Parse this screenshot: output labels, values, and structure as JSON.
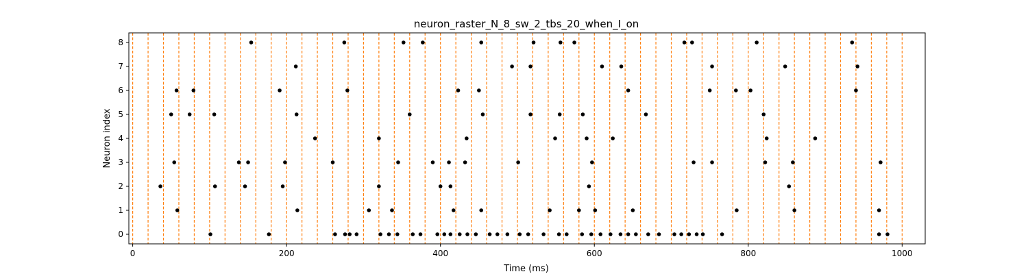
{
  "chart_data": {
    "type": "scatter",
    "title": "neuron_raster_N_8_sw_2_tbs_20_when_I_on",
    "xlabel": "Time (ms)",
    "ylabel": "Neuron index",
    "xlim": [
      -5,
      1030
    ],
    "ylim": [
      -0.4,
      8.4
    ],
    "xticks": [
      0,
      200,
      400,
      600,
      800,
      1000
    ],
    "yticks": [
      0,
      1,
      2,
      3,
      4,
      5,
      6,
      7,
      8
    ],
    "stimulus_times": [
      0,
      20,
      40,
      60,
      80,
      100,
      120,
      140,
      160,
      180,
      200,
      220,
      240,
      260,
      280,
      300,
      320,
      340,
      360,
      380,
      400,
      420,
      440,
      460,
      480,
      500,
      520,
      540,
      560,
      580,
      600,
      620,
      640,
      660,
      680,
      700,
      720,
      740,
      760,
      780,
      800,
      820,
      840,
      860,
      880,
      900,
      920,
      940,
      960,
      980,
      1000
    ],
    "stimulus_color": "#ff7f0e",
    "spike_color": "#000000",
    "spikes": [
      {
        "neuron": 0,
        "times": [
          101,
          177,
          263,
          276,
          282,
          291,
          322,
          333,
          344,
          364,
          374,
          396,
          405,
          413,
          425,
          435,
          446,
          464,
          474,
          487,
          503,
          514,
          534,
          554,
          564,
          584,
          596,
          608,
          621,
          634,
          644,
          654,
          670,
          684,
          704,
          713,
          723,
          733,
          741,
          766,
          970,
          981
        ]
      },
      {
        "neuron": 1,
        "times": [
          58,
          214,
          307,
          337,
          417,
          453,
          542,
          580,
          601,
          650,
          785,
          860,
          970
        ]
      },
      {
        "neuron": 2,
        "times": [
          36,
          107,
          146,
          195,
          320,
          400,
          413,
          593,
          853
        ]
      },
      {
        "neuron": 3,
        "times": [
          54,
          138,
          150,
          198,
          260,
          345,
          390,
          411,
          432,
          501,
          597,
          729,
          753,
          822,
          858,
          972
        ]
      },
      {
        "neuron": 4,
        "times": [
          237,
          320,
          434,
          549,
          590,
          624,
          824,
          887
        ]
      },
      {
        "neuron": 5,
        "times": [
          50,
          74,
          106,
          213,
          360,
          455,
          517,
          555,
          585,
          667,
          820
        ]
      },
      {
        "neuron": 6,
        "times": [
          57,
          79,
          191,
          279,
          423,
          450,
          644,
          750,
          784,
          803,
          940
        ]
      },
      {
        "neuron": 7,
        "times": [
          212,
          493,
          517,
          610,
          635,
          753,
          848,
          942
        ]
      },
      {
        "neuron": 8,
        "times": [
          154,
          275,
          352,
          377,
          453,
          521,
          556,
          574,
          717,
          727,
          811,
          935
        ]
      }
    ]
  }
}
